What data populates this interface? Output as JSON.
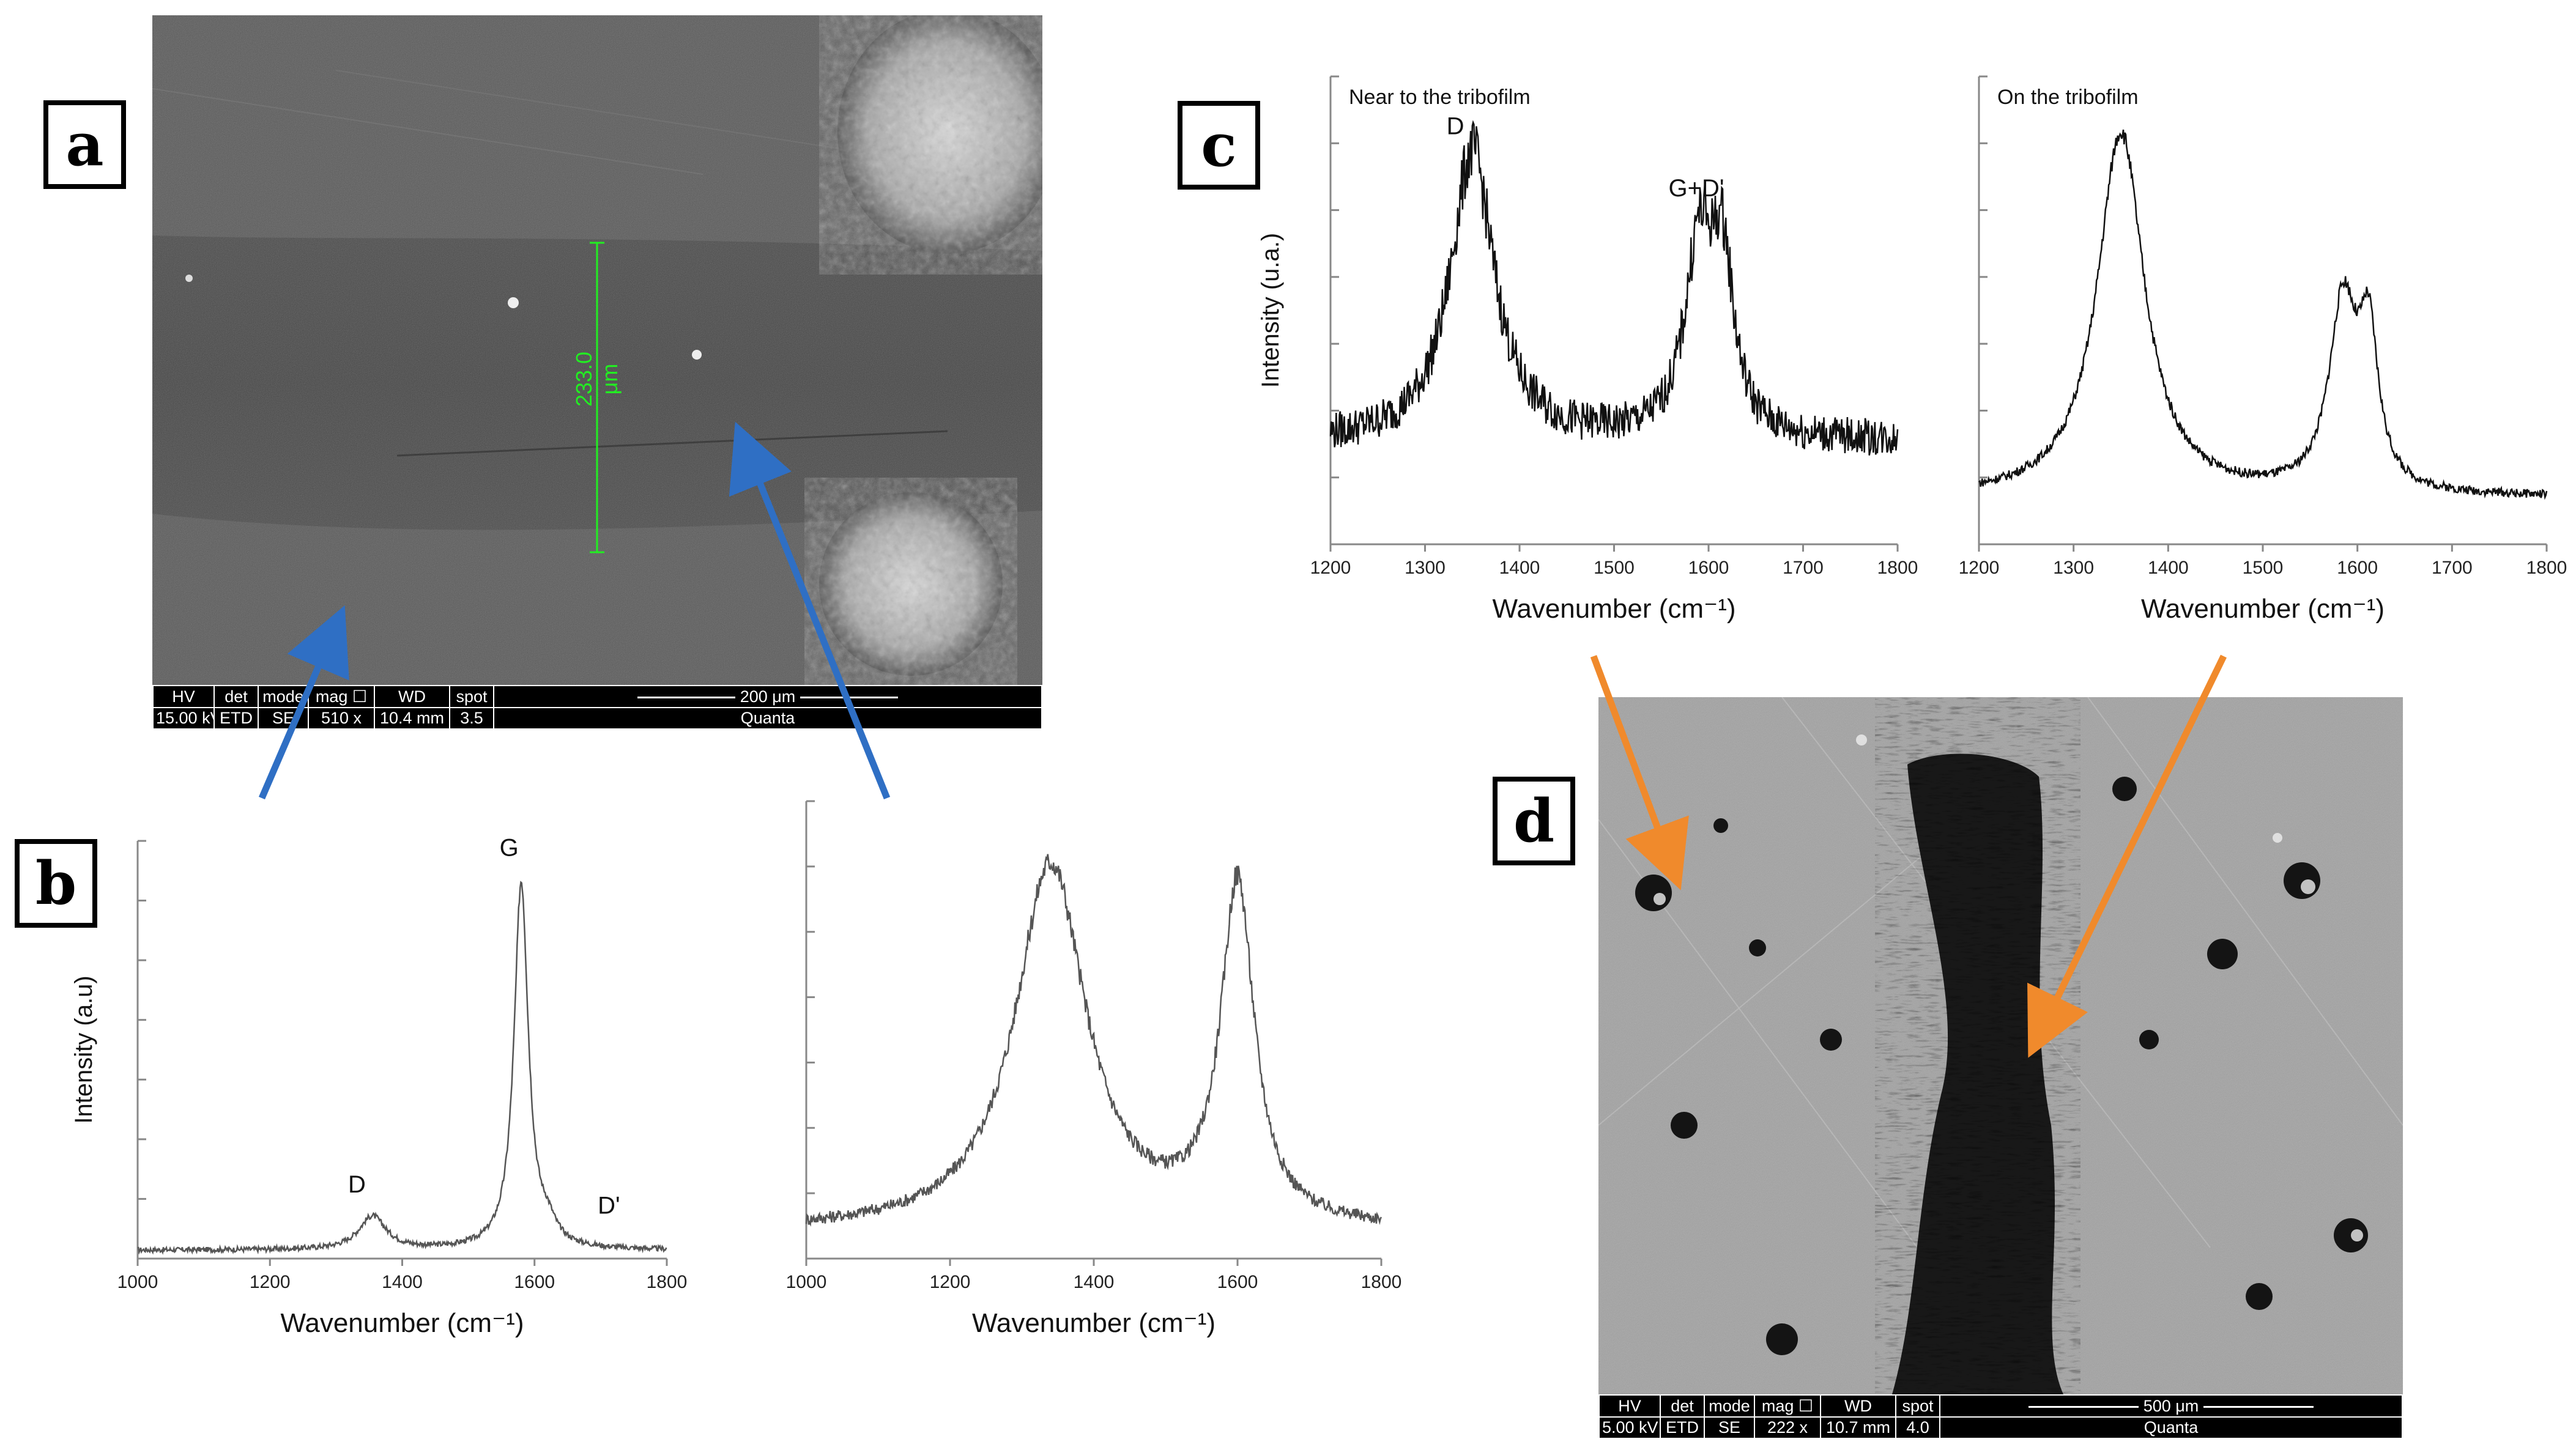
{
  "panels": {
    "a": {
      "label": "a",
      "measure_label": "233.0 μm",
      "info_bar": {
        "headers": [
          "HV",
          "det",
          "mode",
          "mag ☐",
          "WD",
          "spot"
        ],
        "values": [
          "15.00 kV",
          "ETD",
          "SE",
          "510 x",
          "10.4 mm",
          "3.5"
        ],
        "scale_label": "200 μm",
        "brand": "Quanta"
      }
    },
    "b": {
      "label": "b"
    },
    "c": {
      "label": "c"
    },
    "d": {
      "label": "d",
      "info_bar": {
        "headers": [
          "HV",
          "det",
          "mode",
          "mag ☐",
          "WD",
          "spot"
        ],
        "values": [
          "5.00 kV",
          "ETD",
          "SE",
          "222 x",
          "10.7 mm",
          "4.0"
        ],
        "scale_label": "500 μm",
        "brand": "Quanta"
      }
    }
  },
  "colors": {
    "blue_arrow": "#2f6fc4",
    "orange_arrow": "#f08a2c",
    "measure_green": "#22ee22"
  },
  "chart_data": [
    {
      "id": "b-left",
      "type": "line",
      "xlabel": "Wavenumber (cm⁻¹)",
      "ylabel": "Intensity (a.u)",
      "xlim": [
        1000,
        1800
      ],
      "ylim": [
        0,
        1
      ],
      "xticks": [
        1000,
        1200,
        1400,
        1600,
        1800
      ],
      "annotations": [
        {
          "text": "D",
          "x": 1350
        },
        {
          "text": "G",
          "x": 1580
        },
        {
          "text": "D'",
          "x": 1620
        }
      ],
      "peaks": [
        {
          "x": 1355,
          "h": 0.08,
          "w": 25
        },
        {
          "x": 1580,
          "h": 0.88,
          "w": 13
        },
        {
          "x": 1620,
          "h": 0.04,
          "w": 15
        }
      ],
      "baseline": 0.02,
      "noise": 0.006
    },
    {
      "id": "b-right",
      "type": "line",
      "xlabel": "Wavenumber (cm⁻¹)",
      "ylabel": "",
      "xlim": [
        1000,
        1800
      ],
      "ylim": [
        0,
        1
      ],
      "xticks": [
        1000,
        1200,
        1400,
        1600,
        1800
      ],
      "annotations": [],
      "peaks": [
        {
          "x": 1340,
          "h": 0.8,
          "w": 60
        },
        {
          "x": 1600,
          "h": 0.74,
          "w": 28
        }
      ],
      "baseline": 0.06,
      "noise": 0.012
    },
    {
      "id": "c-left",
      "type": "line",
      "title": "Near to the tribofilm",
      "xlabel": "Wavenumber (cm⁻¹)",
      "ylabel": "Intensity (u.a.)",
      "xlim": [
        1200,
        1800
      ],
      "ylim": [
        0,
        1
      ],
      "xticks": [
        1200,
        1300,
        1400,
        1500,
        1600,
        1700,
        1800
      ],
      "annotations": [
        {
          "text": "D",
          "x": 1345
        },
        {
          "text": "G+D'",
          "x": 1600
        }
      ],
      "peaks": [
        {
          "x": 1350,
          "h": 0.62,
          "w": 28
        },
        {
          "x": 1590,
          "h": 0.4,
          "w": 18
        },
        {
          "x": 1615,
          "h": 0.34,
          "w": 14
        }
      ],
      "baseline": 0.22,
      "noise": 0.03
    },
    {
      "id": "c-right",
      "type": "line",
      "title": "On the tribofilm",
      "xlabel": "Wavenumber (cm⁻¹)",
      "ylabel": "",
      "xlim": [
        1200,
        1800
      ],
      "ylim": [
        0,
        1
      ],
      "xticks": [
        1200,
        1300,
        1400,
        1500,
        1600,
        1700,
        1800
      ],
      "annotations": [],
      "peaks": [
        {
          "x": 1350,
          "h": 0.78,
          "w": 30
        },
        {
          "x": 1585,
          "h": 0.4,
          "w": 18
        },
        {
          "x": 1612,
          "h": 0.3,
          "w": 12
        }
      ],
      "baseline": 0.1,
      "noise": 0.008
    }
  ]
}
